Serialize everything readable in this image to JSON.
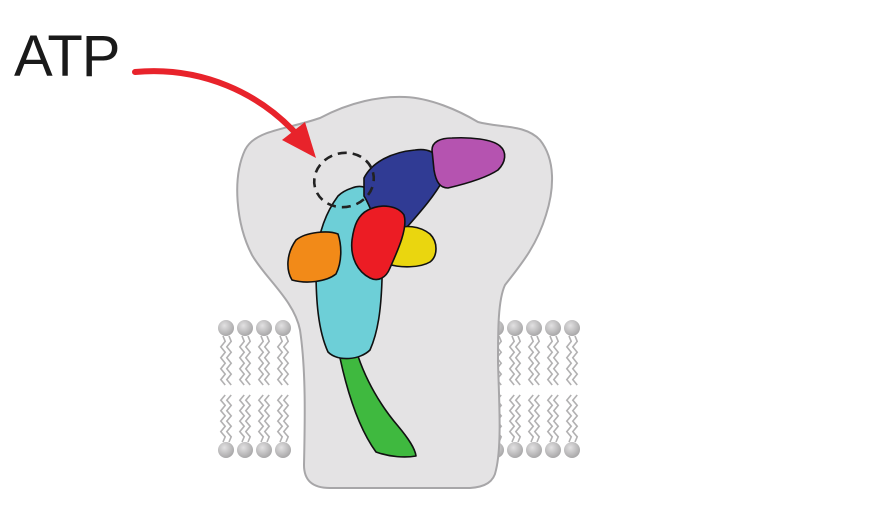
{
  "labels": {
    "atp": "ATP"
  },
  "colors": {
    "background": "#ffffff",
    "protein_body": "#e4e3e4",
    "protein_outline": "#a7a6a8",
    "lipid_head": "#bdbcbd",
    "lipid_tail": "#b2b1b2",
    "arrow": "#e8232b",
    "binding_site": "#222222",
    "domain_purple": "#b553b0",
    "domain_navy": "#303b94",
    "domain_cyan": "#6dcfd7",
    "domain_red": "#ec1c24",
    "domain_yellow": "#ead60f",
    "domain_orange": "#f28a18",
    "domain_green": "#3fb93f"
  }
}
